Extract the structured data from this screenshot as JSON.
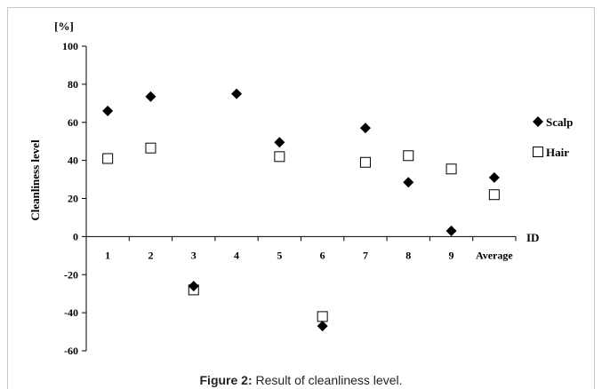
{
  "figure_caption": {
    "label": "Figure 2:",
    "text": " Result of cleanliness level."
  },
  "chart_data": {
    "type": "scatter",
    "ylabel": "Cleanliness level",
    "yunit": "[%]",
    "xlabel": "ID",
    "ylim": [
      -60,
      100
    ],
    "yticks": [
      -60,
      -40,
      -20,
      0,
      20,
      40,
      60,
      80,
      100
    ],
    "categories": [
      "1",
      "2",
      "3",
      "4",
      "5",
      "6",
      "7",
      "8",
      "9",
      "Average"
    ],
    "grid": false,
    "legend_position": "right",
    "series": [
      {
        "name": "Scalp",
        "marker": "diamond",
        "color": "#000000",
        "values": [
          66,
          73.5,
          -26,
          75,
          49.5,
          -47,
          57,
          28.5,
          3,
          31
        ]
      },
      {
        "name": "Hair",
        "marker": "square-open",
        "color": "#000000",
        "values": [
          41,
          46.5,
          -28,
          null,
          42,
          -42,
          39,
          42.5,
          35.5,
          22
        ]
      }
    ]
  }
}
